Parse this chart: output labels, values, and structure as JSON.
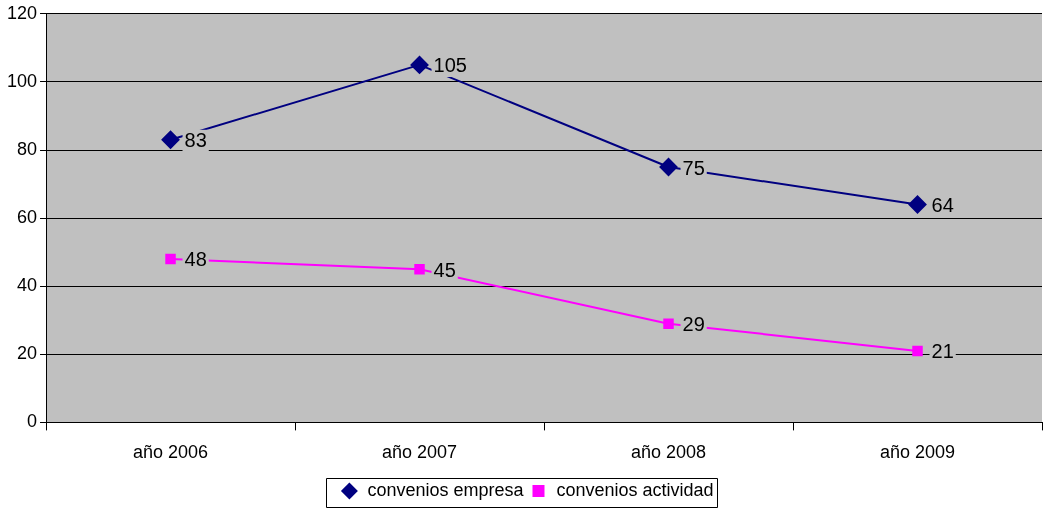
{
  "chart_data": {
    "type": "line",
    "categories": [
      "año 2006",
      "año 2007",
      "año 2008",
      "año 2009"
    ],
    "series": [
      {
        "name": "convenios empresa",
        "color": "#000080",
        "marker": "diamond",
        "values": [
          83,
          105,
          75,
          64
        ]
      },
      {
        "name": "convenios actividad",
        "color": "#ff00ff",
        "marker": "square",
        "values": [
          48,
          45,
          29,
          21
        ]
      }
    ],
    "ylim": [
      0,
      120
    ],
    "yticks": [
      0,
      20,
      40,
      60,
      80,
      100,
      120
    ],
    "grid": "y",
    "legend": "bottom",
    "data_labels": true,
    "line_style": "solid"
  }
}
